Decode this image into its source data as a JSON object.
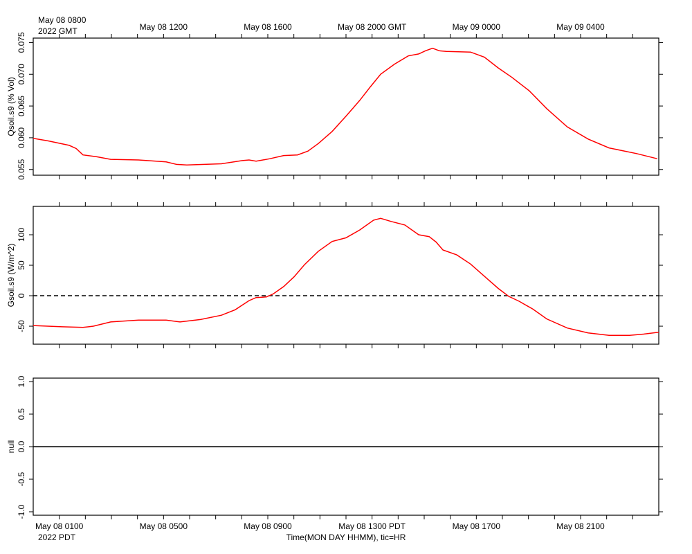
{
  "time_axis": {
    "xlim": [
      0,
      24
    ],
    "minor_ticks": [
      1,
      2,
      3,
      4,
      5,
      6,
      7,
      8,
      9,
      10,
      11,
      12,
      13,
      14,
      15,
      16,
      17,
      18,
      19,
      20,
      21,
      22,
      23
    ],
    "top_corner_label": [
      "May 08 0800",
      "2022 GMT"
    ],
    "top_tick_labels": [
      {
        "value": 5,
        "label": "May 08 1200"
      },
      {
        "value": 9,
        "label": "May 08 1600"
      },
      {
        "value": 13,
        "label": "May 08 2000 GMT"
      },
      {
        "value": 17,
        "label": "May 09 0000"
      },
      {
        "value": 21,
        "label": "May 09 0400"
      }
    ],
    "bottom_tick_labels": [
      {
        "value": 1,
        "label": "May 08 0100"
      },
      {
        "value": 5,
        "label": "May 08 0500"
      },
      {
        "value": 9,
        "label": "May 08 0900"
      },
      {
        "value": 13,
        "label": "May 08 1300 PDT"
      },
      {
        "value": 17,
        "label": "May 08 1700"
      },
      {
        "value": 21,
        "label": "May 08 2100"
      }
    ],
    "bottom_corner_label": "2022 PDT",
    "xlabel": "Time(MON DAY HHMM), tic=HR"
  },
  "chart_data": [
    {
      "type": "line",
      "ylabel": "Qsoil.s9 (% Vol)",
      "ylim": [
        0.0541,
        0.0757
      ],
      "yticks": [
        {
          "value": 0.055,
          "label": "0.055"
        },
        {
          "value": 0.06,
          "label": "0.060"
        },
        {
          "value": 0.065,
          "label": "0.065"
        },
        {
          "value": 0.07,
          "label": "0.070"
        },
        {
          "value": 0.075,
          "label": "0.075"
        }
      ],
      "x": [
        0,
        0.58,
        1.38,
        1.65,
        1.91,
        2.44,
        2.97,
        4.04,
        5.1,
        5.5,
        5.89,
        7.22,
        8.02,
        8.28,
        8.55,
        9.08,
        9.61,
        10.14,
        10.54,
        10.94,
        11.47,
        12.0,
        12.53,
        12.93,
        13.33,
        13.86,
        14.39,
        14.79,
        15.05,
        15.32,
        15.58,
        15.85,
        16.78,
        17.31,
        17.84,
        18.37,
        19.03,
        19.7,
        20.49,
        21.29,
        22.09,
        23.15,
        23.94
      ],
      "series": [
        {
          "color": "#ff0000",
          "values": [
            0.0599,
            0.0595,
            0.0588,
            0.0583,
            0.0573,
            0.057,
            0.0566,
            0.0565,
            0.0562,
            0.0558,
            0.0557,
            0.0559,
            0.0564,
            0.0565,
            0.0563,
            0.0567,
            0.0572,
            0.0573,
            0.0579,
            0.0591,
            0.061,
            0.0634,
            0.0659,
            0.068,
            0.07,
            0.0716,
            0.0729,
            0.0732,
            0.0737,
            0.0741,
            0.0737,
            0.0736,
            0.0735,
            0.0727,
            0.071,
            0.0695,
            0.0674,
            0.0646,
            0.0617,
            0.0598,
            0.0584,
            0.0575,
            0.0567
          ]
        }
      ]
    },
    {
      "type": "line",
      "ylabel": "Gsoil.s9 (W/m^2)",
      "ylim": [
        -79.5,
        146.6
      ],
      "yticks": [
        -50,
        0,
        50,
        100
      ],
      "reference_line": {
        "value": 0,
        "style": "dashed"
      },
      "x": [
        0,
        1.11,
        1.91,
        2.31,
        2.97,
        4.04,
        5.1,
        5.63,
        6.42,
        7.22,
        7.75,
        8.28,
        8.55,
        8.95,
        9.21,
        9.61,
        10.01,
        10.41,
        10.94,
        11.47,
        12.0,
        12.53,
        13.06,
        13.33,
        13.72,
        14.26,
        14.79,
        15.19,
        15.46,
        15.72,
        16.25,
        16.78,
        17.31,
        17.84,
        18.24,
        18.64,
        19.17,
        19.7,
        20.49,
        21.29,
        22.09,
        22.88,
        23.41,
        24.0
      ],
      "series": [
        {
          "color": "#ff0000",
          "values": [
            -48.9,
            -51,
            -52,
            -50,
            -43,
            -40,
            -40,
            -43,
            -39,
            -32,
            -23,
            -8,
            -3,
            -2,
            3,
            15,
            31,
            51,
            73,
            89,
            95,
            108,
            124,
            127,
            122,
            116,
            100,
            97,
            88,
            75,
            67,
            52,
            32,
            12,
            -1,
            -9,
            -22,
            -38,
            -53,
            -61,
            -65,
            -65,
            -63,
            -60
          ]
        }
      ]
    },
    {
      "type": "line",
      "ylabel": "null",
      "ylim": [
        -1.053,
        1.053
      ],
      "yticks": [
        {
          "value": -1,
          "label": "-1.0"
        },
        {
          "value": -0.5,
          "label": "-0.5"
        },
        {
          "value": 0,
          "label": "0.0"
        },
        {
          "value": 0.5,
          "label": "0.5"
        },
        {
          "value": 1,
          "label": "1.0"
        }
      ],
      "reference_line": {
        "value": 0,
        "style": "solid"
      },
      "x": [],
      "series": []
    }
  ]
}
